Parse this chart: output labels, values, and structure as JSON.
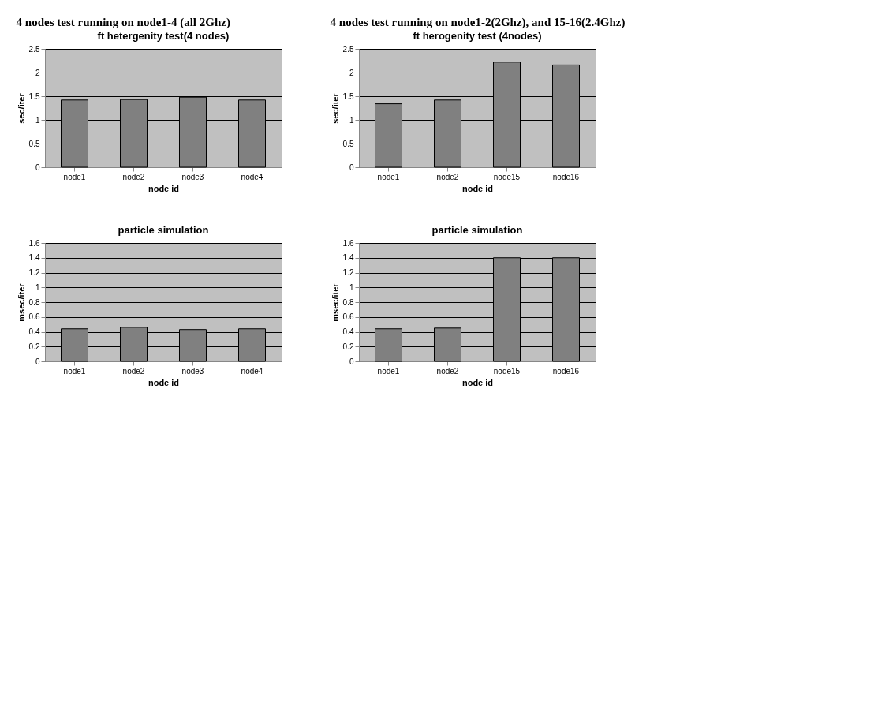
{
  "chart_data": [
    {
      "type": "bar",
      "title": "ft hetergenity test(4 nodes)",
      "annotations": [
        "4 nodes test running on node1-4 (all 2Ghz)"
      ],
      "xlabel": "node id",
      "ylabel": "sec/iter",
      "categories": [
        "node1",
        "node2",
        "node3",
        "node4"
      ],
      "values": [
        1.42,
        1.43,
        1.48,
        1.42
      ],
      "color": "#808080",
      "ylim": [
        0,
        2.5
      ],
      "yticks": [
        0,
        0.5,
        1,
        1.5,
        2,
        2.5
      ],
      "grid": "y"
    },
    {
      "type": "bar",
      "title": "ft herogenity test (4nodes)",
      "annotations": [
        "4 nodes test running on node1-2(2Ghz), and 15-16(2.4Ghz)"
      ],
      "xlabel": "node id",
      "ylabel": "sec/iter",
      "categories": [
        "node1",
        "node2",
        "node15",
        "node16"
      ],
      "values": [
        1.34,
        1.42,
        2.22,
        2.16
      ],
      "color": "#808080",
      "ylim": [
        0,
        2.5
      ],
      "yticks": [
        0,
        0.5,
        1,
        1.5,
        2,
        2.5
      ],
      "grid": "y"
    },
    {
      "type": "bar",
      "title": "particle simulation",
      "xlabel": "node id",
      "ylabel": "msec/iter",
      "categories": [
        "node1",
        "node2",
        "node3",
        "node4"
      ],
      "values": [
        0.44,
        0.46,
        0.43,
        0.44
      ],
      "color": "#808080",
      "ylim": [
        0,
        1.6
      ],
      "yticks": [
        0,
        0.2,
        0.4,
        0.6,
        0.8,
        1,
        1.2,
        1.4,
        1.6
      ],
      "grid": "y"
    },
    {
      "type": "bar",
      "title": "particle simulation",
      "xlabel": "node id",
      "ylabel": "msec/iter",
      "categories": [
        "node1",
        "node2",
        "node15",
        "node16"
      ],
      "values": [
        0.44,
        0.45,
        1.4,
        1.4
      ],
      "color": "#808080",
      "ylim": [
        0,
        1.6
      ],
      "yticks": [
        0,
        0.2,
        0.4,
        0.6,
        0.8,
        1,
        1.2,
        1.4,
        1.6
      ],
      "grid": "y"
    }
  ]
}
